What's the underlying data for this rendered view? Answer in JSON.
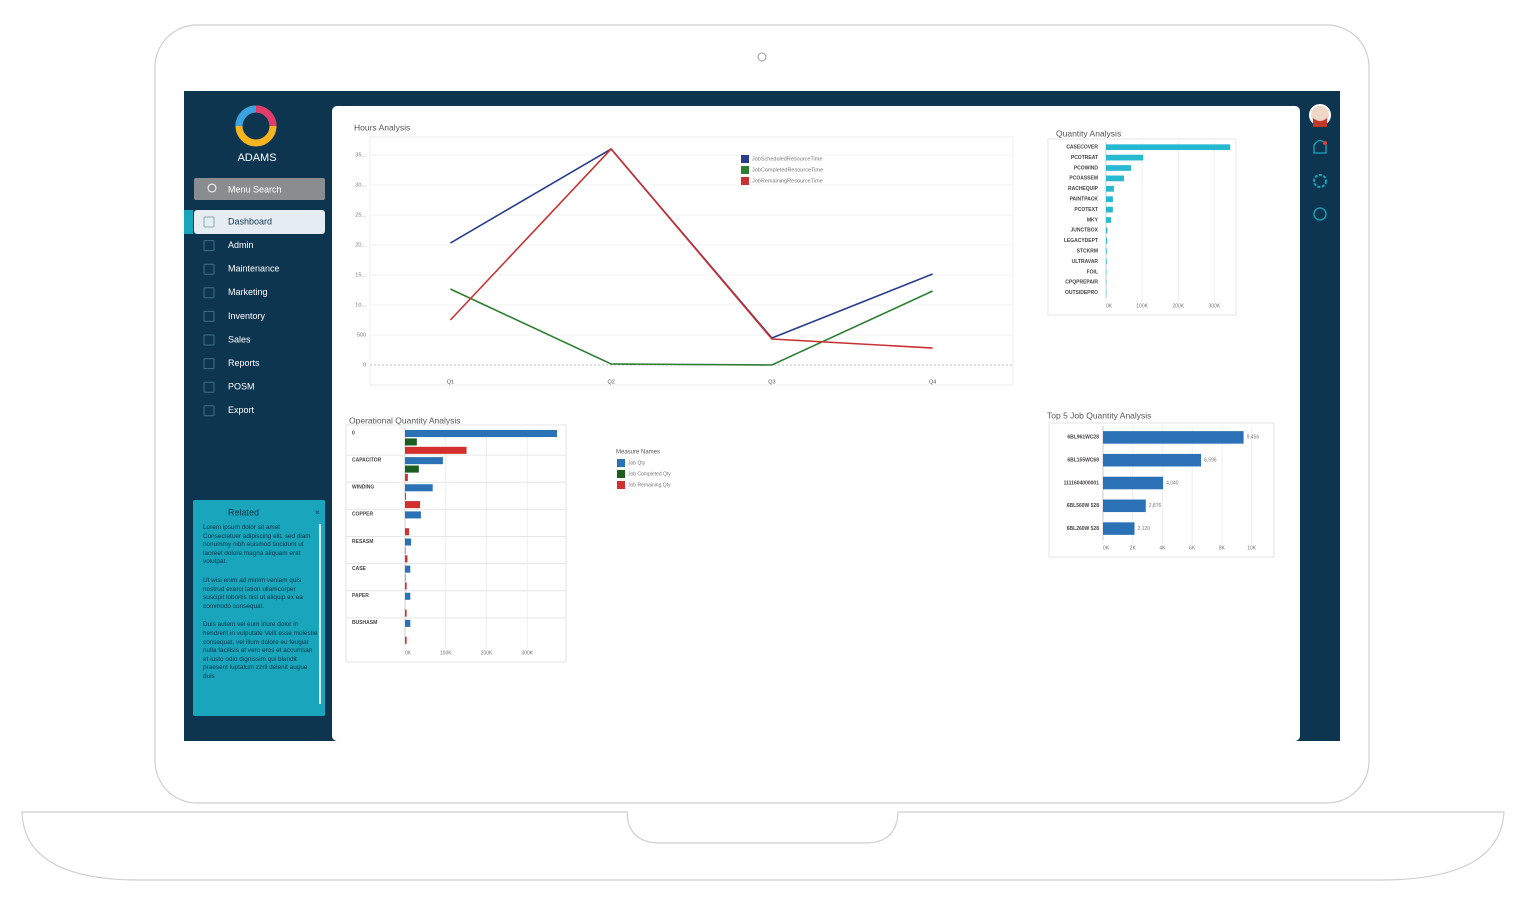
{
  "app": {
    "logo": "ADAMS",
    "search": "Menu Search",
    "menu": [
      "Dashboard",
      "Admin",
      "Maintenance",
      "Marketing",
      "Inventory",
      "Sales",
      "Reports",
      "POSM",
      "Export"
    ],
    "related": {
      "title": "Related",
      "close": "×",
      "paragraphs": [
        "Lorem ipsum dolor sit amet Consectetuer adipiscing elit, sed diam nonummy nibh euismod tincidunt ut laoreet dolore magna aliquam erat volutpat.",
        "Ut wisi enim ad minim veniam quis nostrud exerci tation ullamcorper suscipit lobortis nisl ut aliquip ex ea commodo consequat.",
        "Duis autem vel eum iriure dolor in hendrerit in vulputate Velit esse molestie consequat, vel illum dolore eu feugiat nulla facilisis at vero eros et accumsan et iusto odio dignissim qui blandit praesent luptatum zzril delenit augue duis"
      ]
    }
  },
  "chart_data": [
    {
      "type": "line",
      "title": "Hours Analysis",
      "categories": [
        "Q1",
        "Q2",
        "Q3",
        "Q4"
      ],
      "series": [
        {
          "name": "JobScheduledResourceTime",
          "color": "#2b3d8c",
          "values": [
            2033,
            3600,
            450,
            1517
          ]
        },
        {
          "name": "JobCompletedResourceTime",
          "color": "#2e7d32",
          "values": [
            1267,
            17,
            0,
            1233
          ]
        },
        {
          "name": "JobRemainingResourceTime",
          "color": "#c83232",
          "values": [
            750,
            3600,
            433,
            283
          ]
        }
      ],
      "ylim": [
        0,
        3800
      ],
      "yticks": [
        0,
        500,
        {
          "value": 1000,
          "label": "10..."
        },
        {
          "value": 1500,
          "label": "15..."
        },
        {
          "value": 2000,
          "label": "20..."
        },
        {
          "value": 2500,
          "label": "25..."
        },
        {
          "value": 3000,
          "label": "30..."
        },
        {
          "value": 3500,
          "label": "35..."
        }
      ],
      "grid": true
    },
    {
      "type": "hbar",
      "title": "Quantity Analysis",
      "categories": [
        "CASECOVER",
        "PCOTREAT",
        "PCOWIND",
        "PCOASSEM",
        "RACHEQUIP",
        "PAINTPACK",
        "PCOTEXT",
        "MKY",
        "JUNCTBOX",
        "LEGACYDEPT",
        "STCKRM",
        "ULTRAVAR",
        "FOIL",
        "CPQPREPAIR",
        "OUTSIDEPRO"
      ],
      "series": [
        {
          "color": "#27b9cf",
          "values": [
            344000,
            103000,
            69000,
            50000,
            22000,
            19000,
            19000,
            14000,
            4000,
            3000,
            2000,
            2000,
            1000,
            1000,
            1000
          ]
        }
      ],
      "xlim": [
        0,
        360000
      ],
      "xticks": [
        {
          "value": 0,
          "label": "0K"
        },
        {
          "value": 100000,
          "label": "100K"
        },
        {
          "value": 200000,
          "label": "200K"
        },
        {
          "value": 300000,
          "label": "300K"
        }
      ]
    },
    {
      "type": "hbar",
      "title": "Operational Quantity Analysis",
      "legend_title": "Measure Names",
      "categories": [
        "0",
        "CAPACITOR",
        "WINDING",
        "COPPER",
        "RESASM",
        "CASE",
        "PAPER",
        "BUSHASM"
      ],
      "series": [
        {
          "name": "Job Qty",
          "color": "#2a72b5",
          "values": [
            373000,
            93000,
            68000,
            39000,
            15000,
            13000,
            13000,
            13000
          ]
        },
        {
          "name": "Job Completed Qty",
          "color": "#1b5e20",
          "values": [
            29000,
            34000,
            2000,
            0,
            1000,
            1000,
            0,
            0
          ]
        },
        {
          "name": "Job Remaining Qty",
          "color": "#d32f2f",
          "values": [
            151000,
            7000,
            37000,
            10000,
            6000,
            4000,
            4000,
            4000
          ]
        }
      ],
      "xlim": [
        0,
        395000
      ],
      "xticks": [
        {
          "value": 0,
          "label": "0K"
        },
        {
          "value": 100000,
          "label": "100K"
        },
        {
          "value": 200000,
          "label": "200K"
        },
        {
          "value": 300000,
          "label": "300K"
        }
      ]
    },
    {
      "type": "hbar",
      "title": "Top 5 Job Quantity Analysis",
      "categories": [
        "6BL961WC28",
        "6BL155WC68",
        "1111604000001",
        "6BL560W 528",
        "6BL260W 528"
      ],
      "series": [
        {
          "color": "#2a72b5",
          "values": [
            9456,
            6596,
            4040,
            2876,
            2120
          ],
          "value_labels": [
            "9,456",
            "6,596",
            "4,040",
            "2,876",
            "2,120"
          ]
        }
      ],
      "xlim": [
        0,
        11500
      ],
      "xticks": [
        {
          "value": 0,
          "label": "0K"
        },
        {
          "value": 2000,
          "label": "2K"
        },
        {
          "value": 4000,
          "label": "4K"
        },
        {
          "value": 6000,
          "label": "6K"
        },
        {
          "value": 8000,
          "label": "8K"
        },
        {
          "value": 10000,
          "label": "10K"
        }
      ]
    }
  ]
}
